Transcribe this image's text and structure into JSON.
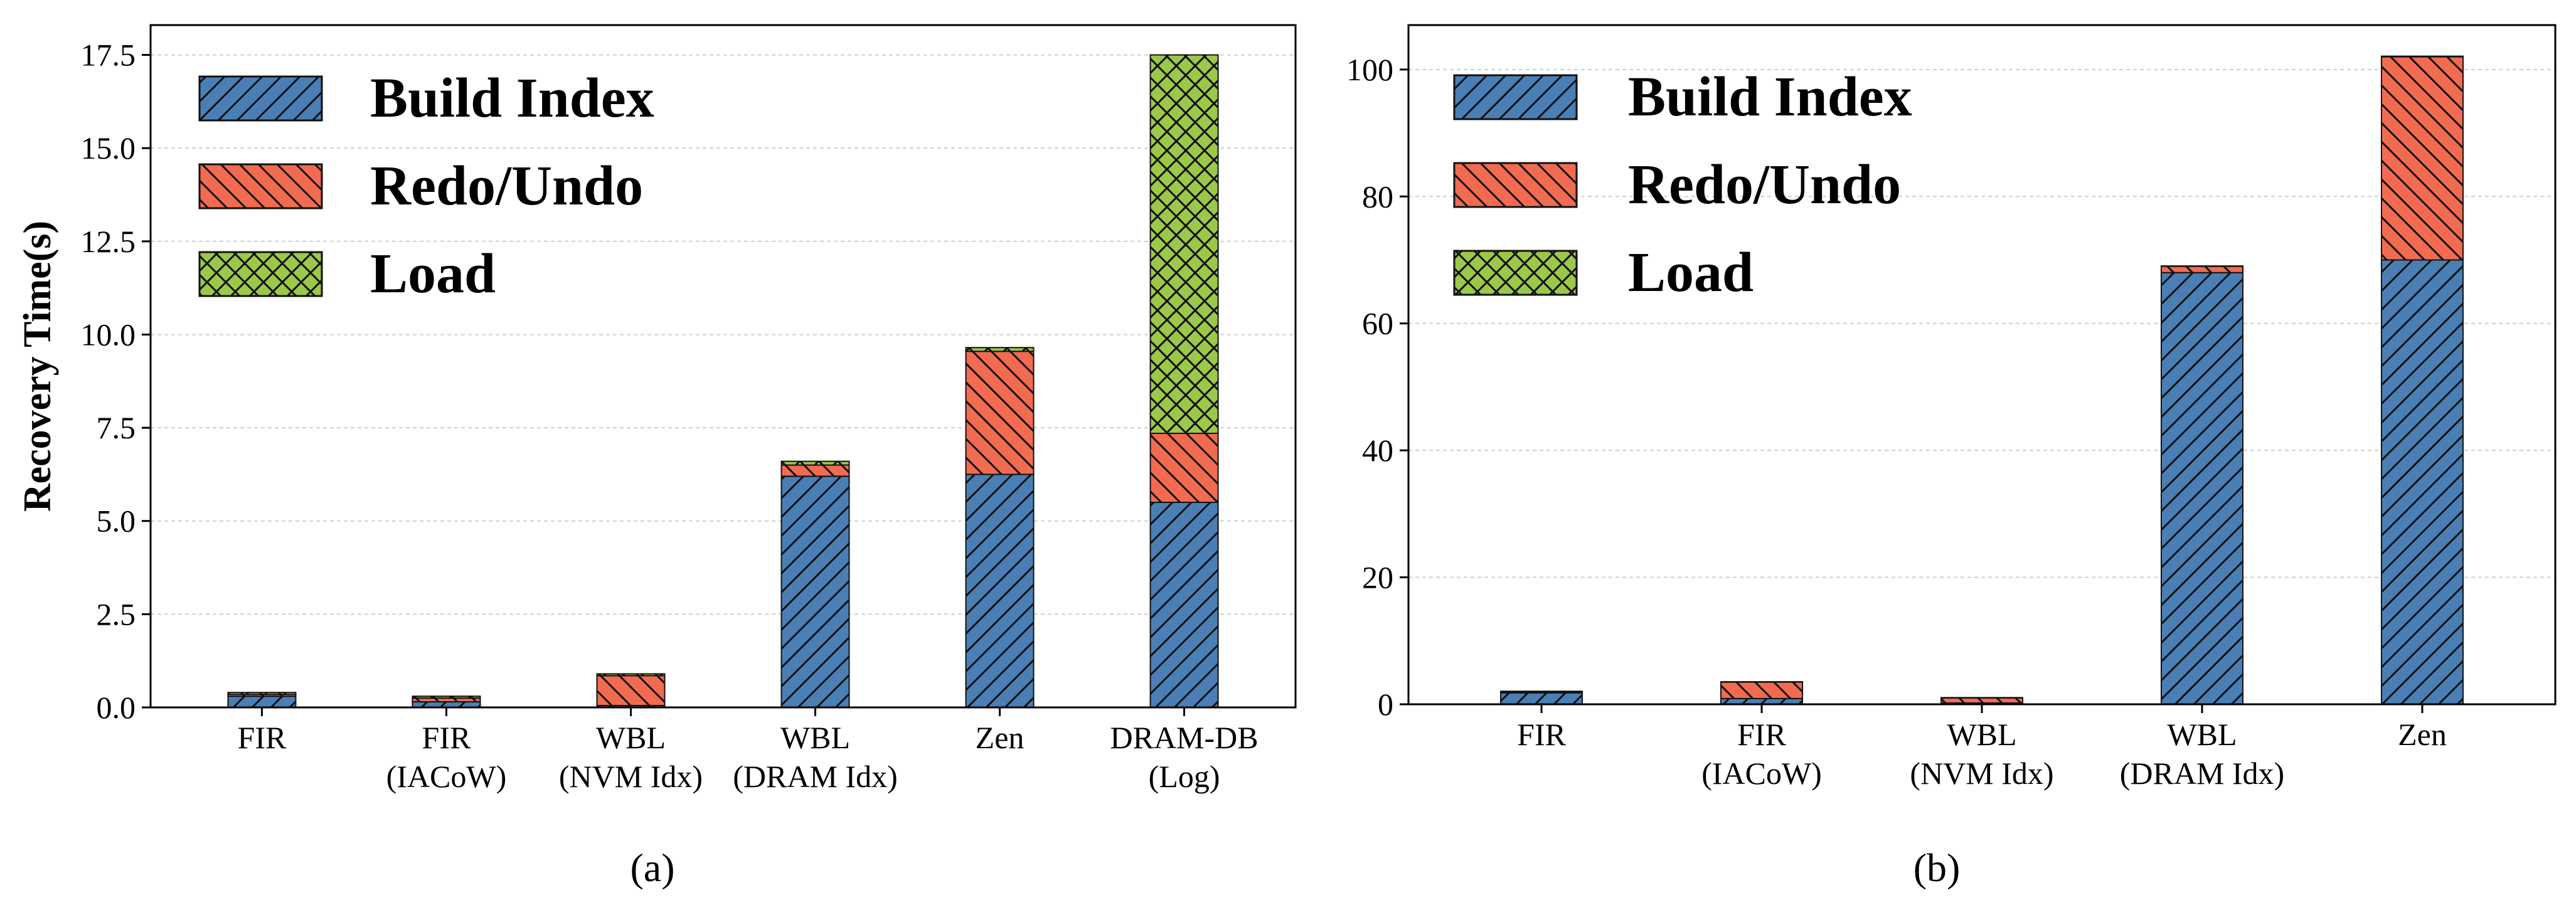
{
  "colors": {
    "build_index": "#4a7fb5",
    "redo_undo": "#f26b50",
    "load": "#9cc84a",
    "hatch": "#111111"
  },
  "legend": [
    {
      "key": "build",
      "label": "Build Index",
      "color": "#4a7fb5",
      "hatch": "diagonal"
    },
    {
      "key": "redo",
      "label": "Redo/Undo",
      "color": "#f26b50",
      "hatch": "backdiagonal"
    },
    {
      "key": "load",
      "label": "Load",
      "color": "#9cc84a",
      "hatch": "crosshatch"
    }
  ],
  "chart_data": [
    {
      "type": "bar",
      "stacked": true,
      "caption": "(a)",
      "ylabel": "Recovery Time(s)",
      "xlabel": "",
      "ylim": [
        0,
        18.3
      ],
      "yticks": [
        "0.0",
        "2.5",
        "5.0",
        "7.5",
        "10.0",
        "12.5",
        "15.0",
        "17.5"
      ],
      "ytick_values": [
        0,
        2.5,
        5,
        7.5,
        10,
        12.5,
        15,
        17.5
      ],
      "grid": true,
      "legend_position": "top-left",
      "categories": [
        [
          "FIR"
        ],
        [
          "FIR",
          "(IACoW)"
        ],
        [
          "WBL",
          "(NVM Idx)"
        ],
        [
          "WBL",
          "(DRAM Idx)"
        ],
        [
          "Zen"
        ],
        [
          "DRAM-DB",
          "(Log)"
        ]
      ],
      "series": [
        {
          "name": "Build Index",
          "key": "build",
          "values": [
            0.3,
            0.15,
            0.05,
            6.2,
            6.25,
            5.5
          ]
        },
        {
          "name": "Redo/Undo",
          "key": "redo",
          "values": [
            0.05,
            0.1,
            0.8,
            0.3,
            3.3,
            1.85
          ]
        },
        {
          "name": "Load",
          "key": "load",
          "values": [
            0.05,
            0.05,
            0.05,
            0.1,
            0.1,
            10.15
          ]
        }
      ]
    },
    {
      "type": "bar",
      "stacked": true,
      "caption": "(b)",
      "ylabel": "",
      "xlabel": "",
      "ylim": [
        0,
        107
      ],
      "yticks": [
        "0",
        "20",
        "40",
        "60",
        "80",
        "100"
      ],
      "ytick_values": [
        0,
        20,
        40,
        60,
        80,
        100
      ],
      "grid": true,
      "legend_position": "top-left",
      "categories": [
        [
          "FIR"
        ],
        [
          "FIR",
          "(IACoW)"
        ],
        [
          "WBL",
          "(NVM Idx)"
        ],
        [
          "WBL",
          "(DRAM Idx)"
        ],
        [
          "Zen"
        ]
      ],
      "series": [
        {
          "name": "Build Index",
          "key": "build",
          "values": [
            1.8,
            0.9,
            0.2,
            68,
            70
          ]
        },
        {
          "name": "Redo/Undo",
          "key": "redo",
          "values": [
            0.2,
            2.6,
            0.8,
            1.0,
            32
          ]
        },
        {
          "name": "Load",
          "key": "load",
          "values": [
            0.05,
            0.05,
            0.05,
            0.05,
            0.1
          ]
        }
      ]
    }
  ]
}
